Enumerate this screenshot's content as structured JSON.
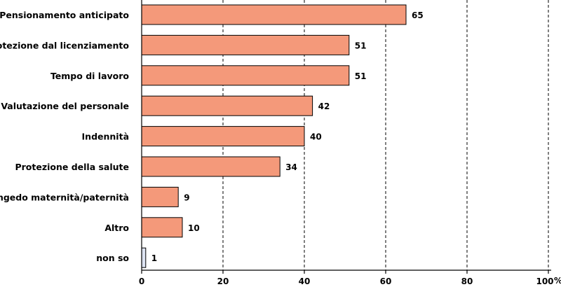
{
  "chart_data": {
    "type": "bar",
    "orientation": "horizontal",
    "categories": [
      "Pensionamento anticipato",
      "Protezione dal licenziamento",
      "Tempo di lavoro",
      "Valutazione del personale",
      "Indennità",
      "Protezione della salute",
      "Congedo maternità/paternità",
      "Altro",
      "non so"
    ],
    "values": [
      65,
      51,
      51,
      42,
      40,
      34,
      9,
      10,
      1
    ],
    "value_labels": [
      "65",
      "51",
      "51",
      "42",
      "40",
      "34",
      "9",
      "10",
      "1"
    ],
    "bar_colors": [
      "#f4997a",
      "#f4997a",
      "#f4997a",
      "#f4997a",
      "#f4997a",
      "#f4997a",
      "#f4997a",
      "#f4997a",
      "#dde3f2"
    ],
    "bar_edge_color": "#000000",
    "xlim": [
      0,
      100
    ],
    "xticks": [
      0,
      20,
      40,
      60,
      80,
      100
    ],
    "xtick_labels": [
      "0",
      "20",
      "40",
      "60",
      "80",
      "100"
    ],
    "x_unit": "%",
    "grid": "vertical dashed"
  }
}
